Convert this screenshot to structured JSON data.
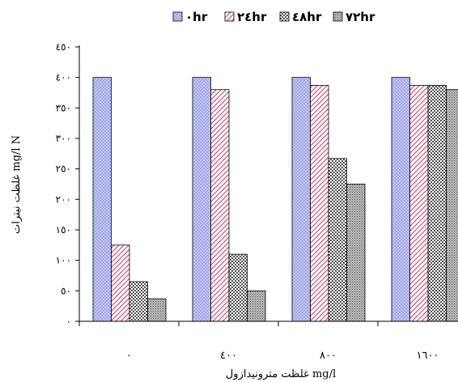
{
  "chart_data": {
    "type": "bar",
    "categories": [
      "٠",
      "٤٠٠",
      "٨٠٠",
      "١٦٠٠"
    ],
    "series": [
      {
        "name": "٠hr",
        "values": [
          400,
          400,
          400,
          400
        ],
        "color": "#bcbff0",
        "pattern": "crosshatch-fine"
      },
      {
        "name": "٢٤hr",
        "values": [
          125,
          380,
          387,
          387
        ],
        "color": "#e8b3c8",
        "pattern": "diagonal"
      },
      {
        "name": "٤٨hr",
        "values": [
          65,
          110,
          267,
          387
        ],
        "color": "#8a8a8a",
        "pattern": "checker"
      },
      {
        "name": "٧٢hr",
        "values": [
          37,
          50,
          225,
          380
        ],
        "color": "#7a7a7a",
        "pattern": "dots"
      }
    ],
    "y_ticks": [
      "٠",
      "٥٠",
      "١٠٠",
      "١٥٠",
      "٢٠٠",
      "٢٥٠",
      "٣٠٠",
      "٣٥٠",
      "٤٠٠",
      "٤٥٠"
    ],
    "ylim": [
      0,
      450
    ],
    "xlabel": "غلظت مترونیدازول mg/l",
    "ylabel": "غلظت نیترات mg/l N",
    "legend_position": "top",
    "grid": false
  }
}
